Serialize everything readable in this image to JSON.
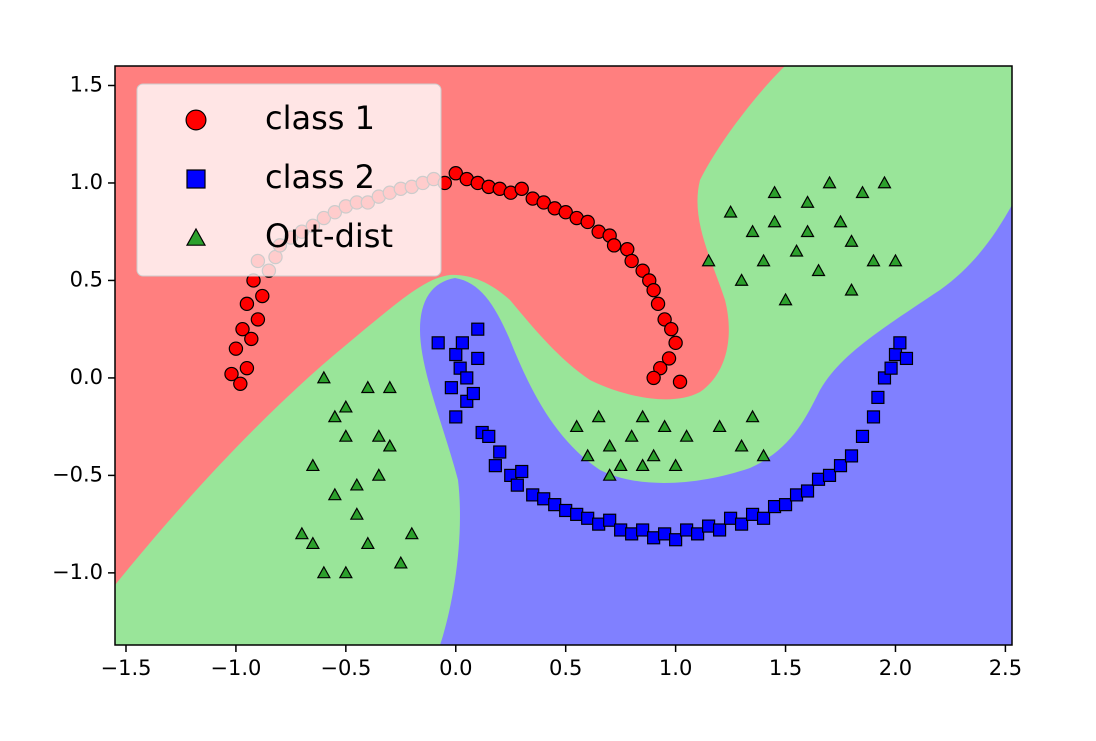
{
  "chart_data": {
    "type": "scatter",
    "xlim": [
      -1.55,
      2.53
    ],
    "ylim": [
      -1.37,
      1.6
    ],
    "xticks": [
      {
        "value": -1.5,
        "label": "−1.5"
      },
      {
        "value": -1,
        "label": "−1.0"
      },
      {
        "value": -0.5,
        "label": "−0.5"
      },
      {
        "value": 0,
        "label": "0.0"
      },
      0.5,
      {
        "value": 1,
        "label": "1.0"
      },
      1.5,
      {
        "value": 2,
        "label": "2.0"
      },
      2.5
    ],
    "yticks": [
      {
        "value": -1,
        "label": "−1.0"
      },
      {
        "value": -0.5,
        "label": "−0.5"
      },
      {
        "value": 0,
        "label": "0.0"
      },
      0.5,
      {
        "value": 1,
        "label": "1.0"
      },
      1.5
    ],
    "legend": "upper left",
    "series": [
      {
        "name": "class 1",
        "color": "#ff0000",
        "marker": "circle",
        "x": [
          -1.02,
          -0.98,
          -0.95,
          -1.0,
          -0.93,
          -0.97,
          -0.9,
          -0.95,
          -0.88,
          -0.92,
          -0.85,
          -0.9,
          -0.82,
          -0.8,
          -0.75,
          -0.7,
          -0.65,
          -0.6,
          -0.55,
          -0.5,
          -0.45,
          -0.4,
          -0.35,
          -0.3,
          -0.25,
          -0.2,
          -0.15,
          -0.1,
          -0.05,
          0.0,
          0.05,
          0.1,
          0.15,
          0.2,
          0.25,
          0.3,
          0.35,
          0.4,
          0.45,
          0.5,
          0.55,
          0.6,
          0.65,
          0.7,
          0.72,
          0.78,
          0.8,
          0.85,
          0.88,
          0.9,
          0.92,
          0.95,
          0.98,
          1.0,
          0.97,
          0.93,
          0.9,
          1.02
        ],
        "values": [
          0.02,
          -0.03,
          0.05,
          0.15,
          0.2,
          0.25,
          0.3,
          0.38,
          0.42,
          0.5,
          0.55,
          0.6,
          0.62,
          0.68,
          0.72,
          0.75,
          0.78,
          0.82,
          0.85,
          0.88,
          0.9,
          0.9,
          0.93,
          0.95,
          0.97,
          0.98,
          1.0,
          1.02,
          1.0,
          1.05,
          1.02,
          1.0,
          0.98,
          0.97,
          0.95,
          0.97,
          0.92,
          0.9,
          0.87,
          0.85,
          0.82,
          0.8,
          0.75,
          0.73,
          0.68,
          0.66,
          0.6,
          0.55,
          0.5,
          0.45,
          0.38,
          0.3,
          0.25,
          0.18,
          0.1,
          0.05,
          0.0,
          -0.02
        ]
      },
      {
        "name": "class 2",
        "color": "#0000ff",
        "marker": "square",
        "x": [
          -0.08,
          0.0,
          0.02,
          -0.02,
          0.05,
          0.0,
          0.08,
          0.03,
          0.1,
          0.12,
          0.15,
          0.2,
          0.18,
          0.25,
          0.3,
          0.28,
          0.35,
          0.4,
          0.45,
          0.5,
          0.55,
          0.6,
          0.65,
          0.7,
          0.75,
          0.8,
          0.85,
          0.9,
          0.95,
          1.0,
          1.05,
          1.1,
          1.15,
          1.2,
          1.25,
          1.3,
          1.35,
          1.4,
          1.45,
          1.5,
          1.55,
          1.6,
          1.65,
          1.7,
          1.75,
          1.8,
          1.85,
          1.9,
          1.92,
          1.95,
          1.98,
          2.0,
          2.02,
          2.05,
          0.1,
          0.05
        ],
        "values": [
          0.18,
          0.12,
          0.05,
          -0.05,
          -0.12,
          -0.2,
          -0.08,
          0.18,
          0.25,
          -0.28,
          -0.3,
          -0.38,
          -0.45,
          -0.5,
          -0.48,
          -0.55,
          -0.6,
          -0.62,
          -0.65,
          -0.68,
          -0.7,
          -0.72,
          -0.75,
          -0.73,
          -0.78,
          -0.8,
          -0.78,
          -0.82,
          -0.8,
          -0.83,
          -0.78,
          -0.8,
          -0.76,
          -0.78,
          -0.72,
          -0.75,
          -0.7,
          -0.72,
          -0.66,
          -0.65,
          -0.6,
          -0.58,
          -0.52,
          -0.5,
          -0.45,
          -0.4,
          -0.3,
          -0.2,
          -0.1,
          0.0,
          0.05,
          0.12,
          0.18,
          0.1,
          0.1,
          0.0
        ]
      },
      {
        "name": "Out-dist",
        "color": "#2ca02c",
        "marker": "triangle",
        "x": [
          -0.7,
          -0.65,
          -0.6,
          -0.55,
          -0.5,
          -0.45,
          -0.4,
          -0.35,
          -0.3,
          -0.25,
          -0.2,
          -0.6,
          -0.5,
          -0.4,
          -0.3,
          -0.55,
          -0.45,
          -0.35,
          -0.65,
          -0.5,
          0.55,
          0.6,
          0.65,
          0.7,
          0.75,
          0.8,
          0.85,
          0.9,
          0.95,
          1.0,
          1.05,
          1.2,
          1.3,
          1.4,
          1.35,
          0.7,
          0.85,
          1.15,
          1.25,
          1.3,
          1.35,
          1.4,
          1.45,
          1.5,
          1.55,
          1.6,
          1.65,
          1.7,
          1.75,
          1.8,
          1.85,
          1.9,
          1.95,
          2.0,
          1.45,
          1.6,
          1.8
        ],
        "values": [
          -0.8,
          -0.45,
          -1.0,
          -0.6,
          -0.3,
          -0.7,
          -0.05,
          -0.5,
          -0.35,
          -0.95,
          -0.8,
          0.0,
          -0.15,
          -0.85,
          -0.05,
          -0.2,
          -0.55,
          -0.3,
          -0.85,
          -1.0,
          -0.25,
          -0.4,
          -0.2,
          -0.35,
          -0.45,
          -0.3,
          -0.2,
          -0.4,
          -0.25,
          -0.45,
          -0.3,
          -0.25,
          -0.35,
          -0.4,
          -0.2,
          -0.5,
          -0.45,
          0.6,
          0.85,
          0.5,
          0.75,
          0.6,
          0.95,
          0.4,
          0.65,
          0.9,
          0.55,
          1.0,
          0.8,
          0.7,
          0.95,
          0.6,
          1.0,
          0.6,
          0.8,
          0.75,
          0.45
        ]
      }
    ]
  }
}
